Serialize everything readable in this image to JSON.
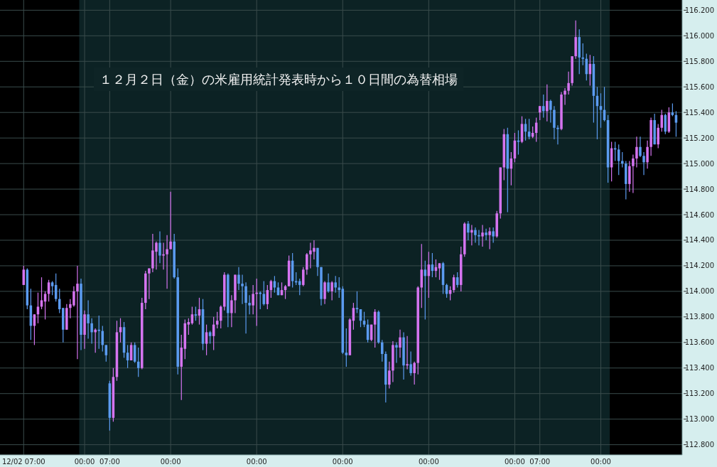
{
  "chart_data": {
    "type": "candlestick",
    "title": "１２月２日（金）の米雇用統計発表時から１０日間の為替相場",
    "categories": [
      "12/02 07:00",
      null,
      null,
      null,
      null,
      null,
      null,
      null,
      null,
      null,
      null,
      null,
      null,
      null,
      null,
      null,
      null,
      "00:00",
      null,
      null,
      null,
      null,
      null,
      null,
      "07:00",
      null,
      null,
      null,
      null,
      null,
      null,
      null,
      null,
      null,
      null,
      null,
      null,
      null,
      null,
      null,
      null,
      "00:00",
      null,
      null,
      null,
      null,
      null,
      null,
      null,
      null,
      null,
      null,
      null,
      null,
      null,
      null,
      null,
      null,
      null,
      null,
      null,
      null,
      null,
      null,
      null,
      "00:00",
      null,
      null,
      null,
      null,
      null,
      null,
      null,
      null,
      null,
      null,
      null,
      null,
      null,
      null,
      null,
      null,
      null,
      null,
      null,
      null,
      null,
      null,
      null,
      "00:00",
      null,
      null,
      null,
      null,
      null,
      null,
      null,
      null,
      null,
      null,
      null,
      null,
      null,
      null,
      null,
      null,
      null,
      null,
      null,
      null,
      null,
      null,
      null,
      "00:00",
      null,
      null,
      null,
      null,
      null,
      null,
      null,
      null,
      null,
      null,
      null,
      null,
      null,
      null,
      null,
      null,
      null,
      null,
      null,
      null,
      null,
      null,
      null,
      "00:00",
      null,
      null,
      null,
      null,
      null,
      null,
      "07:00",
      null,
      null,
      null,
      null,
      null,
      null,
      null,
      null,
      null,
      null,
      null,
      null,
      null,
      null,
      null,
      null,
      "00:00",
      null,
      null,
      null,
      null,
      null,
      null,
      null,
      null,
      null,
      null,
      null,
      null,
      null,
      null,
      null,
      null,
      null,
      null,
      null,
      null,
      null
    ],
    "ohlc": [
      [
        114.05,
        114.2,
        114.05,
        114.17
      ],
      [
        114.17,
        114.18,
        113.86,
        113.89
      ],
      [
        113.89,
        114.02,
        113.62,
        113.73
      ],
      [
        113.73,
        113.82,
        113.58,
        113.82
      ],
      [
        113.82,
        113.99,
        113.75,
        113.88
      ],
      [
        113.88,
        114.11,
        113.86,
        113.93
      ],
      [
        113.92,
        114.0,
        113.78,
        113.98
      ],
      [
        113.98,
        114.09,
        113.92,
        114.07
      ],
      [
        114.07,
        114.08,
        113.97,
        114.04
      ],
      [
        114.05,
        114.14,
        113.92,
        113.94
      ],
      [
        113.94,
        114.02,
        113.83,
        113.86
      ],
      [
        113.87,
        113.87,
        113.6,
        113.7
      ],
      [
        113.7,
        113.9,
        113.7,
        113.87
      ],
      [
        113.87,
        113.94,
        113.79,
        113.9
      ],
      [
        113.89,
        114.04,
        113.88,
        114.0
      ],
      [
        114.0,
        114.2,
        113.47,
        114.06
      ],
      [
        114.06,
        114.1,
        113.54,
        113.66
      ],
      [
        113.66,
        113.85,
        113.55,
        113.82
      ],
      [
        113.82,
        113.93,
        113.63,
        113.75
      ],
      [
        113.75,
        113.79,
        113.59,
        113.68
      ],
      [
        113.68,
        113.71,
        113.52,
        113.7
      ],
      [
        113.7,
        113.81,
        113.55,
        113.69
      ],
      [
        113.69,
        113.73,
        113.53,
        113.58
      ],
      [
        113.58,
        113.58,
        113.45,
        113.5
      ],
      [
        113.28,
        113.3,
        112.91,
        113.01
      ],
      [
        113.01,
        113.4,
        112.98,
        113.33
      ],
      [
        113.33,
        113.77,
        113.3,
        113.68
      ],
      [
        113.68,
        113.79,
        113.6,
        113.72
      ],
      [
        113.72,
        113.76,
        113.48,
        113.52
      ],
      [
        113.52,
        113.58,
        113.4,
        113.46
      ],
      [
        113.46,
        113.6,
        113.46,
        113.58
      ],
      [
        113.58,
        113.6,
        113.44,
        113.45
      ],
      [
        113.45,
        113.56,
        113.33,
        113.4
      ],
      [
        113.4,
        113.95,
        113.39,
        113.91
      ],
      [
        113.91,
        114.16,
        113.86,
        114.14
      ],
      [
        114.14,
        114.18,
        113.94,
        114.18
      ],
      [
        114.18,
        114.45,
        114.15,
        114.32
      ],
      [
        114.31,
        114.39,
        114.17,
        114.38
      ],
      [
        114.38,
        114.47,
        114.22,
        114.28
      ],
      [
        114.28,
        114.38,
        114.17,
        114.29
      ],
      [
        114.29,
        114.44,
        114.02,
        114.33
      ],
      [
        114.33,
        114.78,
        114.33,
        114.39
      ],
      [
        114.39,
        114.45,
        114.1,
        114.11
      ],
      [
        114.11,
        114.18,
        113.35,
        113.41
      ],
      [
        113.41,
        113.66,
        113.15,
        113.56
      ],
      [
        113.55,
        113.78,
        113.47,
        113.75
      ],
      [
        113.74,
        113.79,
        113.66,
        113.76
      ],
      [
        113.75,
        113.88,
        113.74,
        113.82
      ],
      [
        113.82,
        113.88,
        113.77,
        113.81
      ],
      [
        113.81,
        113.95,
        113.74,
        113.86
      ],
      [
        113.86,
        113.94,
        113.54,
        113.59
      ],
      [
        113.59,
        113.74,
        113.5,
        113.68
      ],
      [
        113.68,
        113.69,
        113.59,
        113.65
      ],
      [
        113.65,
        113.8,
        113.54,
        113.74
      ],
      [
        113.74,
        113.84,
        113.71,
        113.77
      ],
      [
        113.77,
        113.89,
        113.71,
        113.88
      ],
      [
        113.88,
        114.15,
        113.85,
        114.13
      ],
      [
        114.13,
        114.14,
        113.72,
        113.83
      ],
      [
        113.83,
        113.97,
        113.72,
        113.93
      ],
      [
        113.93,
        114.13,
        113.83,
        114.13
      ],
      [
        114.13,
        114.19,
        114.01,
        114.06
      ],
      [
        114.06,
        114.13,
        113.9,
        114.04
      ],
      [
        114.04,
        114.07,
        113.67,
        113.91
      ],
      [
        113.91,
        113.97,
        113.82,
        113.89
      ],
      [
        113.89,
        114.05,
        113.82,
        113.98
      ],
      [
        113.98,
        114.1,
        113.73,
        113.99
      ],
      [
        113.99,
        114.0,
        113.86,
        113.98
      ],
      [
        113.98,
        114.08,
        113.89,
        113.9
      ],
      [
        113.9,
        114.05,
        113.86,
        114.01
      ],
      [
        114.01,
        114.09,
        113.95,
        114.08
      ],
      [
        114.08,
        114.12,
        113.99,
        114.03
      ],
      [
        114.03,
        114.07,
        113.97,
        113.97
      ],
      [
        113.97,
        114.07,
        113.97,
        114.01
      ],
      [
        114.01,
        114.05,
        113.94,
        114.04
      ],
      [
        114.04,
        114.28,
        114.04,
        114.24
      ],
      [
        114.24,
        114.3,
        114.03,
        114.08
      ],
      [
        114.08,
        114.15,
        114.05,
        114.07
      ],
      [
        114.08,
        114.1,
        113.97,
        114.05
      ],
      [
        114.05,
        114.19,
        114.04,
        114.17
      ],
      [
        114.17,
        114.3,
        114.13,
        114.29
      ],
      [
        114.29,
        114.38,
        114.18,
        114.32
      ],
      [
        114.31,
        114.4,
        114.25,
        114.34
      ],
      [
        114.34,
        114.34,
        114.12,
        114.19
      ],
      [
        114.19,
        114.19,
        113.89,
        113.94
      ],
      [
        113.94,
        114.08,
        113.9,
        114.07
      ],
      [
        114.07,
        114.14,
        113.99,
        114.0
      ],
      [
        114.0,
        114.08,
        113.93,
        114.07
      ],
      [
        114.07,
        114.12,
        113.99,
        114.03
      ],
      [
        114.03,
        114.11,
        113.95,
        114.01
      ],
      [
        114.02,
        114.04,
        113.51,
        113.52
      ],
      [
        113.52,
        113.71,
        113.41,
        113.5
      ],
      [
        113.5,
        113.79,
        113.5,
        113.78
      ],
      [
        113.77,
        113.91,
        113.7,
        113.87
      ],
      [
        113.87,
        114.0,
        113.83,
        113.86
      ],
      [
        113.86,
        113.86,
        113.72,
        113.77
      ],
      [
        113.77,
        113.84,
        113.72,
        113.74
      ],
      [
        113.74,
        113.78,
        113.6,
        113.62
      ],
      [
        113.62,
        113.74,
        113.61,
        113.74
      ],
      [
        113.74,
        113.86,
        113.56,
        113.84
      ],
      [
        113.84,
        113.85,
        113.59,
        113.6
      ],
      [
        113.6,
        113.62,
        113.45,
        113.51
      ],
      [
        113.51,
        113.53,
        113.13,
        113.27
      ],
      [
        113.27,
        113.45,
        113.24,
        113.38
      ],
      [
        113.38,
        113.61,
        113.29,
        113.58
      ],
      [
        113.58,
        113.6,
        113.44,
        113.56
      ],
      [
        113.56,
        113.7,
        113.48,
        113.64
      ],
      [
        113.64,
        113.68,
        113.31,
        113.42
      ],
      [
        113.42,
        113.65,
        113.39,
        113.43
      ],
      [
        113.43,
        113.53,
        113.34,
        113.36
      ],
      [
        113.36,
        113.45,
        113.27,
        113.44
      ],
      [
        113.44,
        114.04,
        113.35,
        114.03
      ],
      [
        114.03,
        114.37,
        113.87,
        114.17
      ],
      [
        114.17,
        114.24,
        113.78,
        114.12
      ],
      [
        114.12,
        114.31,
        113.95,
        114.21
      ],
      [
        114.21,
        114.3,
        114.11,
        114.16
      ],
      [
        114.16,
        114.25,
        114.11,
        114.19
      ],
      [
        114.18,
        114.22,
        114.09,
        114.22
      ],
      [
        114.22,
        114.23,
        113.98,
        114.05
      ],
      [
        114.05,
        114.06,
        113.95,
        113.98
      ],
      [
        113.98,
        114.04,
        113.93,
        114.01
      ],
      [
        114.01,
        114.13,
        113.99,
        114.11
      ],
      [
        114.11,
        114.15,
        114.03,
        114.05
      ],
      [
        114.05,
        114.35,
        114.0,
        114.29
      ],
      [
        114.29,
        114.54,
        114.27,
        114.53
      ],
      [
        114.53,
        114.55,
        114.4,
        114.46
      ],
      [
        114.46,
        114.52,
        114.36,
        114.48
      ],
      [
        114.48,
        114.5,
        114.38,
        114.44
      ],
      [
        114.44,
        114.48,
        114.36,
        114.43
      ],
      [
        114.43,
        114.52,
        114.35,
        114.46
      ],
      [
        114.46,
        114.49,
        114.4,
        114.44
      ],
      [
        114.44,
        114.5,
        114.33,
        114.47
      ],
      [
        114.47,
        114.5,
        114.38,
        114.43
      ],
      [
        114.43,
        114.63,
        114.42,
        114.61
      ],
      [
        114.61,
        114.97,
        114.57,
        114.97
      ],
      [
        114.97,
        115.27,
        114.87,
        115.23
      ],
      [
        115.23,
        115.28,
        114.62,
        114.96
      ],
      [
        114.96,
        115.09,
        114.83,
        115.04
      ],
      [
        115.04,
        115.24,
        115.01,
        115.18
      ],
      [
        115.18,
        115.26,
        115.07,
        115.17
      ],
      [
        115.17,
        115.37,
        115.16,
        115.31
      ],
      [
        115.31,
        115.35,
        115.18,
        115.25
      ],
      [
        115.25,
        115.35,
        115.19,
        115.21
      ],
      [
        115.21,
        115.29,
        115.2,
        115.24
      ],
      [
        115.24,
        115.36,
        115.17,
        115.32
      ],
      [
        115.4,
        115.45,
        115.34,
        115.45
      ],
      [
        115.45,
        115.54,
        115.36,
        115.41
      ],
      [
        115.41,
        115.62,
        115.33,
        115.49
      ],
      [
        115.49,
        115.5,
        115.32,
        115.42
      ],
      [
        115.42,
        115.45,
        115.19,
        115.28
      ],
      [
        115.28,
        115.3,
        115.15,
        115.27
      ],
      [
        115.27,
        115.56,
        115.26,
        115.54
      ],
      [
        115.54,
        115.59,
        115.46,
        115.57
      ],
      [
        115.57,
        115.72,
        115.54,
        115.63
      ],
      [
        115.63,
        115.84,
        115.61,
        115.84
      ],
      [
        115.84,
        116.12,
        115.82,
        115.99
      ],
      [
        115.99,
        116.05,
        115.7,
        115.83
      ],
      [
        115.83,
        115.94,
        115.77,
        115.82
      ],
      [
        115.82,
        115.86,
        115.65,
        115.7
      ],
      [
        115.7,
        115.85,
        115.61,
        115.78
      ],
      [
        115.78,
        115.84,
        115.32,
        115.53
      ],
      [
        115.53,
        115.6,
        115.19,
        115.45
      ],
      [
        115.45,
        115.55,
        115.28,
        115.42
      ],
      [
        115.42,
        115.6,
        115.33,
        115.34
      ],
      [
        115.34,
        115.38,
        114.85,
        114.97
      ],
      [
        114.97,
        115.17,
        114.86,
        115.12
      ],
      [
        115.12,
        115.17,
        115.02,
        115.11
      ],
      [
        115.11,
        115.15,
        114.91,
        115.02
      ],
      [
        115.02,
        115.09,
        114.97,
        115.0
      ],
      [
        115.0,
        115.02,
        114.72,
        114.84
      ],
      [
        114.84,
        115.02,
        114.78,
        114.98
      ],
      [
        114.98,
        115.07,
        114.77,
        115.04
      ],
      [
        115.04,
        115.21,
        114.97,
        115.13
      ],
      [
        115.13,
        115.21,
        115.05,
        115.06
      ],
      [
        115.06,
        115.09,
        114.91,
        115.01
      ],
      [
        115.01,
        115.18,
        114.96,
        115.13
      ],
      [
        115.13,
        115.36,
        115.06,
        115.34
      ],
      [
        115.34,
        115.39,
        115.15,
        115.15
      ],
      [
        115.15,
        115.31,
        115.12,
        115.28
      ],
      [
        115.28,
        115.42,
        115.25,
        115.38
      ],
      [
        115.38,
        115.39,
        115.23,
        115.25
      ],
      [
        115.25,
        115.44,
        115.24,
        115.4
      ],
      [
        115.4,
        115.47,
        115.37,
        115.38
      ],
      [
        115.38,
        115.41,
        115.21,
        115.32
      ]
    ],
    "colors": [
      "#d574f0",
      "#5b9bf0",
      "#5b9bf0",
      "#d574f0",
      "#d574f0",
      "#d574f0",
      "#d574f0",
      "#d574f0",
      "#5b9bf0",
      "#5b9bf0",
      "#5b9bf0",
      "#5b9bf0",
      "#d574f0",
      "#d574f0",
      "#d574f0",
      "#d574f0",
      "#5b9bf0",
      "#d574f0",
      "#5b9bf0",
      "#5b9bf0",
      "#d574f0",
      "#5b9bf0",
      "#5b9bf0",
      "#5b9bf0",
      "#5b9bf0",
      "#d574f0",
      "#d574f0",
      "#d574f0",
      "#5b9bf0",
      "#5b9bf0",
      "#d574f0",
      "#5b9bf0",
      "#5b9bf0",
      "#d574f0",
      "#d574f0",
      "#d574f0",
      "#d574f0",
      "#d574f0",
      "#5b9bf0",
      "#d574f0",
      "#d574f0",
      "#d574f0",
      "#5b9bf0",
      "#5b9bf0",
      "#d574f0",
      "#d574f0",
      "#d574f0",
      "#d574f0",
      "#5b9bf0",
      "#d574f0",
      "#5b9bf0",
      "#d574f0",
      "#5b9bf0",
      "#d574f0",
      "#d574f0",
      "#d574f0",
      "#d574f0",
      "#5b9bf0",
      "#d574f0",
      "#d574f0",
      "#5b9bf0",
      "#5b9bf0",
      "#5b9bf0",
      "#5b9bf0",
      "#d574f0",
      "#d574f0",
      "#5b9bf0",
      "#5b9bf0",
      "#d574f0",
      "#d574f0",
      "#5b9bf0",
      "#5b9bf0",
      "#d574f0",
      "#d574f0",
      "#d574f0",
      "#5b9bf0",
      "#5b9bf0",
      "#5b9bf0",
      "#d574f0",
      "#d574f0",
      "#d574f0",
      "#d574f0",
      "#5b9bf0",
      "#5b9bf0",
      "#d574f0",
      "#5b9bf0",
      "#d574f0",
      "#5b9bf0",
      "#5b9bf0",
      "#5b9bf0",
      "#5b9bf0",
      "#d574f0",
      "#d574f0",
      "#5b9bf0",
      "#5b9bf0",
      "#5b9bf0",
      "#5b9bf0",
      "#d574f0",
      "#d574f0",
      "#5b9bf0",
      "#5b9bf0",
      "#5b9bf0",
      "#d574f0",
      "#d574f0",
      "#5b9bf0",
      "#d574f0",
      "#5b9bf0",
      "#d574f0",
      "#5b9bf0",
      "#d574f0",
      "#d574f0",
      "#d574f0",
      "#5b9bf0",
      "#d574f0",
      "#5b9bf0",
      "#d574f0",
      "#d574f0",
      "#5b9bf0",
      "#5b9bf0",
      "#d574f0",
      "#d574f0",
      "#5b9bf0",
      "#d574f0",
      "#d574f0",
      "#5b9bf0",
      "#d574f0",
      "#5b9bf0",
      "#5b9bf0",
      "#d574f0",
      "#5b9bf0",
      "#d574f0",
      "#5b9bf0",
      "#d574f0",
      "#d574f0",
      "#d574f0",
      "#5b9bf0",
      "#d574f0",
      "#d574f0",
      "#5b9bf0",
      "#d574f0",
      "#5b9bf0",
      "#5b9bf0",
      "#d574f0",
      "#d574f0",
      "#d574f0",
      "#5b9bf0",
      "#d574f0",
      "#5b9bf0",
      "#5b9bf0",
      "#5b9bf0",
      "#d574f0",
      "#d574f0",
      "#d574f0",
      "#d574f0",
      "#d574f0",
      "#5b9bf0",
      "#5b9bf0",
      "#5b9bf0",
      "#d574f0",
      "#5b9bf0",
      "#5b9bf0",
      "#5b9bf0",
      "#5b9bf0",
      "#5b9bf0",
      "#d574f0",
      "#5b9bf0",
      "#5b9bf0",
      "#5b9bf0",
      "#5b9bf0",
      "#d574f0",
      "#d574f0",
      "#d574f0",
      "#5b9bf0",
      "#5b9bf0",
      "#d574f0",
      "#d574f0",
      "#5b9bf0",
      "#d574f0",
      "#d574f0",
      "#5b9bf0",
      "#d574f0",
      "#5b9bf0",
      "#5b9bf0"
    ],
    "ylim": [
      112.72,
      116.28
    ],
    "yticks": [
      {
        "value": 112.8,
        "label": "112.800"
      },
      {
        "value": 113.0,
        "label": "113.000"
      },
      {
        "value": 113.2,
        "label": "113.200"
      },
      {
        "value": 113.4,
        "label": "113.400"
      },
      {
        "value": 113.6,
        "label": "113.600"
      },
      {
        "value": 113.8,
        "label": "113.800"
      },
      {
        "value": 114.0,
        "label": "114.000"
      },
      {
        "value": 114.2,
        "label": "114.200"
      },
      {
        "value": 114.4,
        "label": "114.400"
      },
      {
        "value": 114.6,
        "label": "114.600"
      },
      {
        "value": 114.8,
        "label": "114.800"
      },
      {
        "value": 115.0,
        "label": "115.000"
      },
      {
        "value": 115.2,
        "label": "115.200"
      },
      {
        "value": 115.4,
        "label": "115.400"
      },
      {
        "value": 115.6,
        "label": "115.600"
      },
      {
        "value": 115.8,
        "label": "115.800"
      },
      {
        "value": 116.0,
        "label": "116.000"
      },
      {
        "value": 116.2,
        "label": "116.200"
      }
    ],
    "grid": true
  }
}
